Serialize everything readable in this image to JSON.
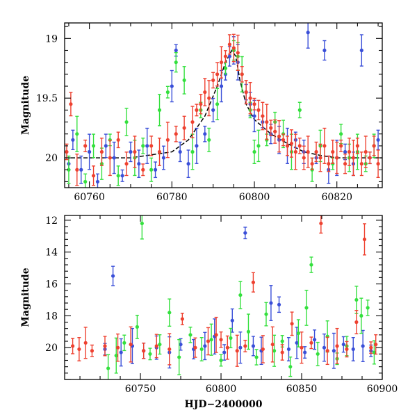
{
  "chart_data": [
    {
      "type": "scatter",
      "xlabel": "",
      "ylabel": "Magnitude",
      "xlim": [
        60754,
        60831
      ],
      "ylim": [
        20.25,
        18.87
      ],
      "y_inverted": true,
      "x_ticks": [
        60760,
        60780,
        60800,
        60820
      ],
      "y_ticks": [
        19,
        19.5,
        20
      ],
      "x_tick_labels": [
        "60760",
        "60780",
        "60800",
        "60820"
      ],
      "y_tick_labels": [
        "19",
        "19.5",
        "20"
      ],
      "grid": false,
      "legend": "none",
      "series": [
        {
          "color": "#3a4fd8",
          "points": [
            [
              60755,
              20.05
            ],
            [
              60756,
              19.85
            ],
            [
              60758,
              20.1
            ],
            [
              60760,
              19.95
            ],
            [
              60762,
              20.2
            ],
            [
              60764,
              19.9
            ],
            [
              60766,
              20.0
            ],
            [
              60768,
              20.15
            ],
            [
              60770,
              19.95
            ],
            [
              60772,
              20.05
            ],
            [
              60774,
              19.9
            ],
            [
              60776,
              20.1
            ],
            [
              60778,
              20.0
            ],
            [
              60780,
              19.4
            ],
            [
              60781,
              19.1
            ],
            [
              60782,
              19.95
            ],
            [
              60784,
              20.05
            ],
            [
              60786,
              19.9
            ],
            [
              60788,
              19.8
            ],
            [
              60790,
              19.6
            ],
            [
              60792,
              19.4
            ],
            [
              60793,
              19.3
            ],
            [
              60794,
              19.15
            ],
            [
              60795,
              19.1
            ],
            [
              60796,
              19.2
            ],
            [
              60798,
              19.45
            ],
            [
              60799,
              19.55
            ],
            [
              60800,
              19.65
            ],
            [
              60802,
              19.7
            ],
            [
              60804,
              19.8
            ],
            [
              60806,
              19.85
            ],
            [
              60808,
              19.9
            ],
            [
              60810,
              19.85
            ],
            [
              60812,
              19.95
            ],
            [
              60813,
              18.95
            ],
            [
              60815,
              20.0
            ],
            [
              60817,
              19.1
            ],
            [
              60818,
              20.1
            ],
            [
              60820,
              20.0
            ],
            [
              60822,
              19.95
            ],
            [
              60824,
              20.05
            ],
            [
              60826,
              19.1
            ],
            [
              60828,
              20.0
            ],
            [
              60830,
              19.85
            ]
          ]
        },
        {
          "color": "#34e03e",
          "points": [
            [
              60755,
              20.1
            ],
            [
              60757,
              19.8
            ],
            [
              60759,
              20.2
            ],
            [
              60761,
              19.9
            ],
            [
              60763,
              20.05
            ],
            [
              60765,
              19.85
            ],
            [
              60767,
              20.15
            ],
            [
              60769,
              19.7
            ],
            [
              60771,
              20.0
            ],
            [
              60773,
              19.9
            ],
            [
              60775,
              20.1
            ],
            [
              60777,
              19.6
            ],
            [
              60779,
              19.45
            ],
            [
              60781,
              19.2
            ],
            [
              60783,
              19.35
            ],
            [
              60785,
              19.95
            ],
            [
              60787,
              19.6
            ],
            [
              60789,
              19.85
            ],
            [
              60791,
              19.55
            ],
            [
              60793,
              19.25
            ],
            [
              60795,
              19.1
            ],
            [
              60796,
              19.15
            ],
            [
              60797,
              19.3
            ],
            [
              60799,
              19.6
            ],
            [
              60800,
              19.95
            ],
            [
              60801,
              19.9
            ],
            [
              60803,
              19.85
            ],
            [
              60805,
              19.7
            ],
            [
              60807,
              19.8
            ],
            [
              60809,
              19.95
            ],
            [
              60811,
              19.6
            ],
            [
              60814,
              20.1
            ],
            [
              60816,
              19.9
            ],
            [
              60819,
              20.05
            ],
            [
              60821,
              19.8
            ],
            [
              60823,
              20.0
            ],
            [
              60825,
              19.95
            ],
            [
              60827,
              20.05
            ],
            [
              60829,
              19.9
            ]
          ]
        },
        {
          "color": "#ee4130",
          "points": [
            [
              60754.5,
              19.95
            ],
            [
              60755.5,
              19.55
            ],
            [
              60757,
              20.1
            ],
            [
              60759,
              19.9
            ],
            [
              60761,
              20.15
            ],
            [
              60763,
              19.95
            ],
            [
              60765,
              20.0
            ],
            [
              60767,
              19.85
            ],
            [
              60769,
              20.05
            ],
            [
              60771,
              19.95
            ],
            [
              60773,
              20.1
            ],
            [
              60775,
              19.9
            ],
            [
              60777,
              19.95
            ],
            [
              60779,
              19.85
            ],
            [
              60781,
              19.8
            ],
            [
              60783,
              19.75
            ],
            [
              60785,
              19.7
            ],
            [
              60786,
              19.6
            ],
            [
              60787,
              19.55
            ],
            [
              60788,
              19.45
            ],
            [
              60789,
              19.5
            ],
            [
              60790,
              19.35
            ],
            [
              60791,
              19.3
            ],
            [
              60792,
              19.2
            ],
            [
              60793,
              19.15
            ],
            [
              60794,
              19.05
            ],
            [
              60795,
              19.08
            ],
            [
              60796,
              19.12
            ],
            [
              60797,
              19.3
            ],
            [
              60798,
              19.45
            ],
            [
              60799,
              19.5
            ],
            [
              60800,
              19.55
            ],
            [
              60801,
              19.6
            ],
            [
              60802,
              19.65
            ],
            [
              60803,
              19.7
            ],
            [
              60804,
              19.75
            ],
            [
              60805,
              19.78
            ],
            [
              60806,
              19.82
            ],
            [
              60807,
              19.85
            ],
            [
              60808,
              19.9
            ],
            [
              60809,
              19.88
            ],
            [
              60810,
              19.95
            ],
            [
              60811,
              19.9
            ],
            [
              60812,
              20.0
            ],
            [
              60813,
              19.95
            ],
            [
              60814,
              20.05
            ],
            [
              60815,
              19.95
            ],
            [
              60816,
              20.0
            ],
            [
              60817,
              19.9
            ],
            [
              60818,
              20.05
            ],
            [
              60819,
              19.95
            ],
            [
              60820,
              20.0
            ],
            [
              60821,
              19.9
            ],
            [
              60822,
              20.05
            ],
            [
              60823,
              19.95
            ],
            [
              60824,
              20.0
            ],
            [
              60825,
              19.9
            ],
            [
              60826,
              20.05
            ],
            [
              60827,
              19.95
            ],
            [
              60828,
              20.0
            ],
            [
              60829,
              19.9
            ],
            [
              60830,
              20.05
            ]
          ]
        }
      ],
      "model_curve": [
        [
          60754,
          20.0
        ],
        [
          60770,
          20.0
        ],
        [
          60780,
          19.95
        ],
        [
          60784,
          19.85
        ],
        [
          60788,
          19.65
        ],
        [
          60791,
          19.4
        ],
        [
          60793,
          19.2
        ],
        [
          60794.5,
          19.1
        ],
        [
          60795.5,
          19.15
        ],
        [
          60796.5,
          19.35
        ],
        [
          60798,
          19.55
        ],
        [
          60800,
          19.68
        ],
        [
          60804,
          19.8
        ],
        [
          60808,
          19.88
        ],
        [
          60812,
          19.95
        ],
        [
          60816,
          19.98
        ],
        [
          60820,
          20.0
        ],
        [
          60831,
          20.0
        ]
      ]
    },
    {
      "type": "scatter",
      "xlabel": "HJD−2400000",
      "ylabel": "Magnitude",
      "xlim": [
        60703,
        60900
      ],
      "ylim": [
        22.0,
        11.7
      ],
      "y_inverted": true,
      "x_ticks": [
        60750,
        60800,
        60850,
        60900
      ],
      "y_ticks": [
        12,
        14,
        16,
        18,
        20
      ],
      "x_tick_labels": [
        "60750",
        "60800",
        "60850",
        "60900"
      ],
      "y_tick_labels": [
        "12",
        "14",
        "16",
        "18",
        "20"
      ],
      "grid": false,
      "legend": "none",
      "series": [
        {
          "color": "#3a4fd8",
          "points": [
            [
              60728,
              20.1
            ],
            [
              60733,
              15.5
            ],
            [
              60738,
              20.3
            ],
            [
              60745,
              19.9
            ],
            [
              60752,
              20.2
            ],
            [
              60760,
              20.0
            ],
            [
              60768,
              20.3
            ],
            [
              60775,
              19.8
            ],
            [
              60783,
              20.1
            ],
            [
              60790,
              19.9
            ],
            [
              60796,
              19.3
            ],
            [
              60802,
              20.3
            ],
            [
              60807,
              18.3
            ],
            [
              60812,
              20.0
            ],
            [
              60815,
              12.8
            ],
            [
              60820,
              19.9
            ],
            [
              60825,
              20.2
            ],
            [
              60831,
              17.2
            ],
            [
              60836,
              17.3
            ],
            [
              60842,
              20.1
            ],
            [
              60847,
              19.7
            ],
            [
              60852,
              20.3
            ],
            [
              60858,
              19.5
            ],
            [
              60864,
              20.0
            ],
            [
              60870,
              20.2
            ],
            [
              60876,
              19.8
            ],
            [
              60882,
              20.1
            ],
            [
              60888,
              19.9
            ],
            [
              60893,
              20.2
            ]
          ]
        },
        {
          "color": "#34e03e",
          "points": [
            [
              60730,
              21.3
            ],
            [
              60735,
              20.5
            ],
            [
              60740,
              19.7
            ],
            [
              60748,
              18.7
            ],
            [
              60751,
              12.2
            ],
            [
              60756,
              20.4
            ],
            [
              60762,
              19.8
            ],
            [
              60768,
              17.8
            ],
            [
              60774,
              20.6
            ],
            [
              60781,
              19.2
            ],
            [
              60788,
              20.1
            ],
            [
              60794,
              19.5
            ],
            [
              60800,
              20.8
            ],
            [
              60806,
              19.4
            ],
            [
              60812,
              16.7
            ],
            [
              60817,
              19.0
            ],
            [
              60822,
              20.6
            ],
            [
              60828,
              17.9
            ],
            [
              60833,
              20.2
            ],
            [
              60838,
              19.6
            ],
            [
              60843,
              21.2
            ],
            [
              60848,
              19.1
            ],
            [
              60853,
              17.5
            ],
            [
              60856,
              14.8
            ],
            [
              60860,
              20.4
            ],
            [
              60866,
              19.3
            ],
            [
              60872,
              20.7
            ],
            [
              60878,
              19.9
            ],
            [
              60884,
              17.0
            ],
            [
              60887,
              18.0
            ],
            [
              60891,
              17.5
            ],
            [
              60895,
              20.3
            ]
          ]
        },
        {
          "color": "#ee4130",
          "points": [
            [
              60708,
              19.9
            ],
            [
              60712,
              20.1
            ],
            [
              60716,
              19.7
            ],
            [
              60720,
              20.2
            ],
            [
              60728,
              19.9
            ],
            [
              60736,
              20.0
            ],
            [
              60744,
              19.8
            ],
            [
              60752,
              20.2
            ],
            [
              60760,
              19.9
            ],
            [
              60768,
              20.1
            ],
            [
              60776,
              18.2
            ],
            [
              60784,
              20.0
            ],
            [
              60792,
              19.6
            ],
            [
              60797,
              19.2
            ],
            [
              60800,
              19.5
            ],
            [
              60804,
              20.0
            ],
            [
              60810,
              20.2
            ],
            [
              60815,
              19.9
            ],
            [
              60820,
              15.9
            ],
            [
              60826,
              20.1
            ],
            [
              60832,
              19.8
            ],
            [
              60838,
              20.3
            ],
            [
              60844,
              18.5
            ],
            [
              60850,
              20.0
            ],
            [
              60856,
              19.7
            ],
            [
              60862,
              12.2
            ],
            [
              60866,
              20.2
            ],
            [
              60872,
              19.9
            ],
            [
              60878,
              20.1
            ],
            [
              60884,
              18.4
            ],
            [
              60889,
              13.2
            ],
            [
              60893,
              20.0
            ],
            [
              60896,
              19.8
            ]
          ]
        }
      ]
    }
  ]
}
